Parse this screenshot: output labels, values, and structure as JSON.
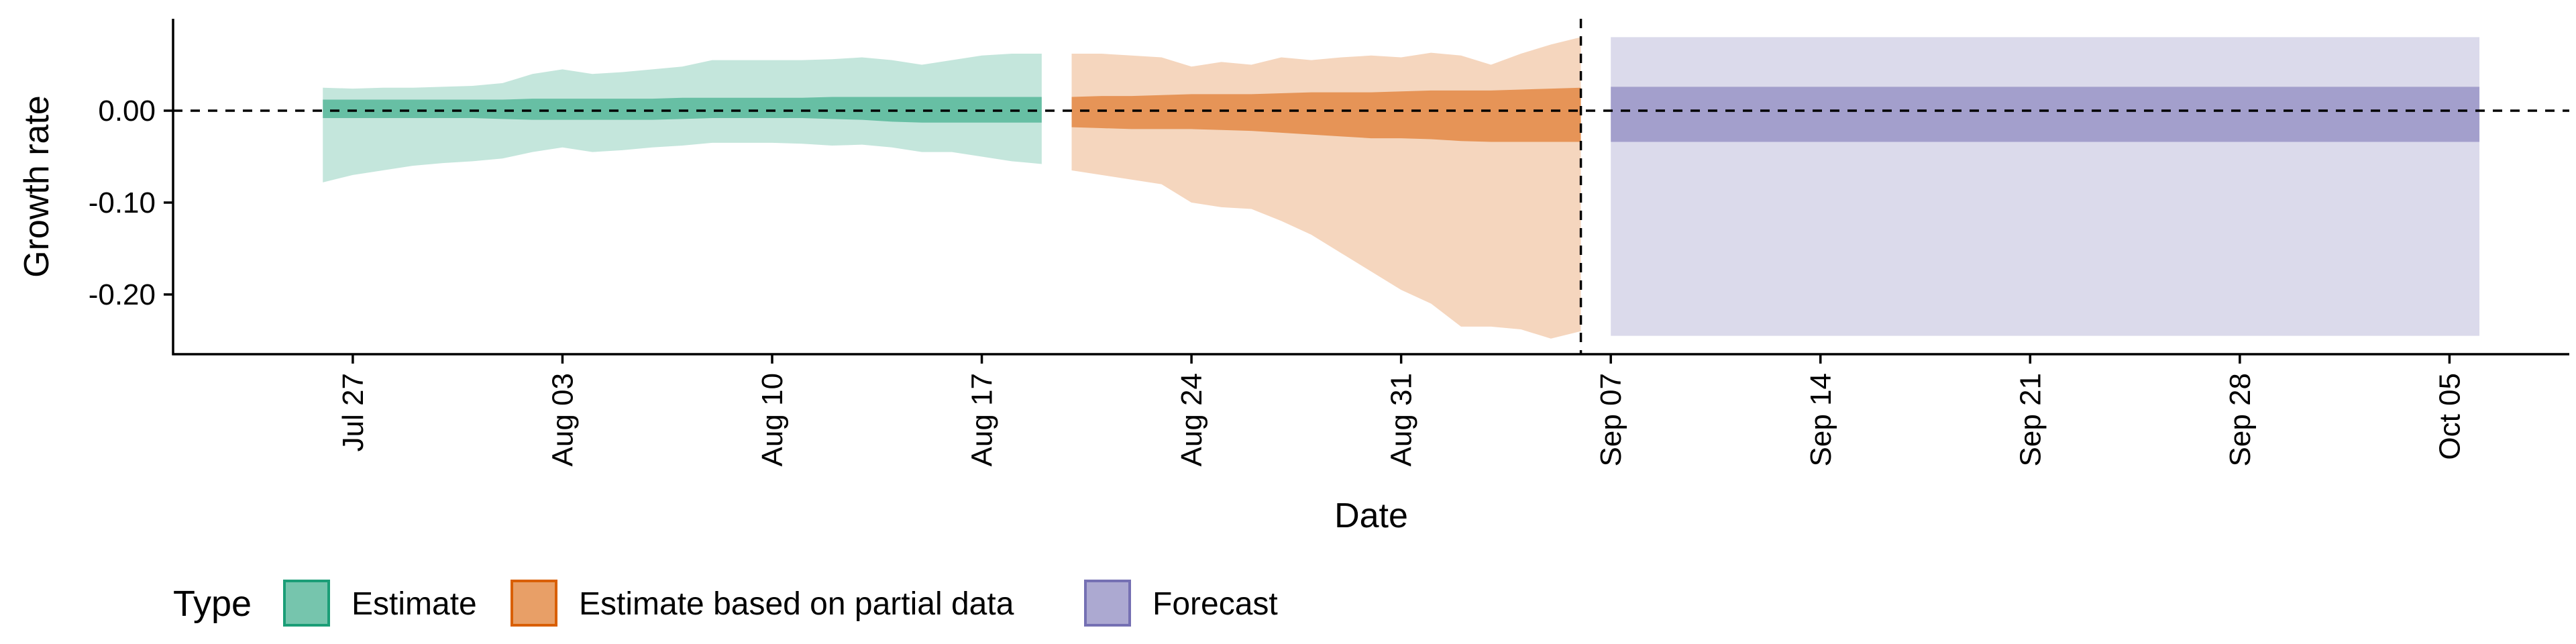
{
  "chart_data": {
    "type": "area",
    "xlabel": "Date",
    "ylabel": "Growth rate",
    "x_type": "date",
    "xlim": [
      "2021-07-21",
      "2021-10-09"
    ],
    "ylim": [
      -0.265,
      0.1
    ],
    "x_ticks": [
      {
        "date": "2021-07-27",
        "label": "Jul 27"
      },
      {
        "date": "2021-08-03",
        "label": "Aug 03"
      },
      {
        "date": "2021-08-10",
        "label": "Aug 10"
      },
      {
        "date": "2021-08-17",
        "label": "Aug 17"
      },
      {
        "date": "2021-08-24",
        "label": "Aug 24"
      },
      {
        "date": "2021-08-31",
        "label": "Aug 31"
      },
      {
        "date": "2021-09-07",
        "label": "Sep 07"
      },
      {
        "date": "2021-09-14",
        "label": "Sep 14"
      },
      {
        "date": "2021-09-21",
        "label": "Sep 21"
      },
      {
        "date": "2021-09-28",
        "label": "Sep 28"
      },
      {
        "date": "2021-10-05",
        "label": "Oct 05"
      }
    ],
    "y_ticks": [
      {
        "value": 0.0,
        "label": "0.00"
      },
      {
        "value": -0.1,
        "label": "-0.10"
      },
      {
        "value": -0.2,
        "label": "-0.20"
      }
    ],
    "reference_lines": {
      "horizontal_y": 0.0,
      "vertical_date": "2021-09-06"
    },
    "grid": false,
    "legend": {
      "position": "bottom-left",
      "title": "Type",
      "items": [
        {
          "label": "Estimate",
          "color": "#1b9e77"
        },
        {
          "label": "Estimate based on partial data",
          "color": "#d95f02"
        },
        {
          "label": "Forecast",
          "color": "#7570b3"
        }
      ]
    },
    "series": [
      {
        "name": "Estimate",
        "color": "#1b9e77",
        "x": [
          "2021-07-26",
          "2021-07-27",
          "2021-07-28",
          "2021-07-29",
          "2021-07-30",
          "2021-07-31",
          "2021-08-01",
          "2021-08-02",
          "2021-08-03",
          "2021-08-04",
          "2021-08-05",
          "2021-08-06",
          "2021-08-07",
          "2021-08-08",
          "2021-08-09",
          "2021-08-10",
          "2021-08-11",
          "2021-08-12",
          "2021-08-13",
          "2021-08-14",
          "2021-08-15",
          "2021-08-16",
          "2021-08-17",
          "2021-08-18",
          "2021-08-19"
        ],
        "outer_upper": [
          0.025,
          0.024,
          0.025,
          0.025,
          0.026,
          0.027,
          0.03,
          0.04,
          0.045,
          0.04,
          0.042,
          0.045,
          0.048,
          0.055,
          0.055,
          0.055,
          0.055,
          0.056,
          0.058,
          0.055,
          0.05,
          0.055,
          0.06,
          0.062,
          0.062
        ],
        "outer_lower": [
          -0.078,
          -0.07,
          -0.065,
          -0.06,
          -0.057,
          -0.055,
          -0.052,
          -0.045,
          -0.04,
          -0.045,
          -0.043,
          -0.04,
          -0.038,
          -0.035,
          -0.035,
          -0.035,
          -0.036,
          -0.038,
          -0.037,
          -0.04,
          -0.045,
          -0.045,
          -0.05,
          -0.055,
          -0.058
        ],
        "inner_upper": [
          0.012,
          0.012,
          0.012,
          0.012,
          0.012,
          0.012,
          0.012,
          0.013,
          0.013,
          0.013,
          0.013,
          0.013,
          0.014,
          0.014,
          0.014,
          0.014,
          0.014,
          0.015,
          0.015,
          0.015,
          0.015,
          0.015,
          0.015,
          0.015,
          0.015
        ],
        "inner_lower": [
          -0.008,
          -0.008,
          -0.008,
          -0.008,
          -0.008,
          -0.008,
          -0.009,
          -0.01,
          -0.01,
          -0.01,
          -0.01,
          -0.01,
          -0.009,
          -0.008,
          -0.008,
          -0.008,
          -0.008,
          -0.009,
          -0.01,
          -0.012,
          -0.013,
          -0.013,
          -0.013,
          -0.013,
          -0.013
        ]
      },
      {
        "name": "Estimate based on partial data",
        "color": "#d95f02",
        "x": [
          "2021-08-20",
          "2021-08-21",
          "2021-08-22",
          "2021-08-23",
          "2021-08-24",
          "2021-08-25",
          "2021-08-26",
          "2021-08-27",
          "2021-08-28",
          "2021-08-29",
          "2021-08-30",
          "2021-08-31",
          "2021-09-01",
          "2021-09-02",
          "2021-09-03",
          "2021-09-04",
          "2021-09-05",
          "2021-09-06"
        ],
        "outer_upper": [
          0.062,
          0.062,
          0.06,
          0.058,
          0.048,
          0.053,
          0.05,
          0.058,
          0.055,
          0.058,
          0.06,
          0.058,
          0.063,
          0.06,
          0.05,
          0.062,
          0.072,
          0.08
        ],
        "outer_lower": [
          -0.065,
          -0.07,
          -0.075,
          -0.08,
          -0.1,
          -0.105,
          -0.107,
          -0.12,
          -0.135,
          -0.155,
          -0.175,
          -0.195,
          -0.21,
          -0.235,
          -0.235,
          -0.238,
          -0.248,
          -0.24
        ],
        "inner_upper": [
          0.015,
          0.016,
          0.016,
          0.017,
          0.018,
          0.018,
          0.018,
          0.019,
          0.02,
          0.02,
          0.02,
          0.021,
          0.022,
          0.022,
          0.022,
          0.023,
          0.024,
          0.025
        ],
        "inner_lower": [
          -0.018,
          -0.019,
          -0.02,
          -0.02,
          -0.02,
          -0.021,
          -0.022,
          -0.024,
          -0.026,
          -0.028,
          -0.03,
          -0.03,
          -0.031,
          -0.033,
          -0.034,
          -0.034,
          -0.034,
          -0.034
        ]
      },
      {
        "name": "Forecast",
        "color": "#7570b3",
        "x": [
          "2021-09-07",
          "2021-10-06"
        ],
        "outer_upper": [
          0.08,
          0.08
        ],
        "outer_lower": [
          -0.245,
          -0.245
        ],
        "inner_upper": [
          0.026,
          0.026
        ],
        "inner_lower": [
          -0.034,
          -0.034
        ]
      }
    ]
  }
}
